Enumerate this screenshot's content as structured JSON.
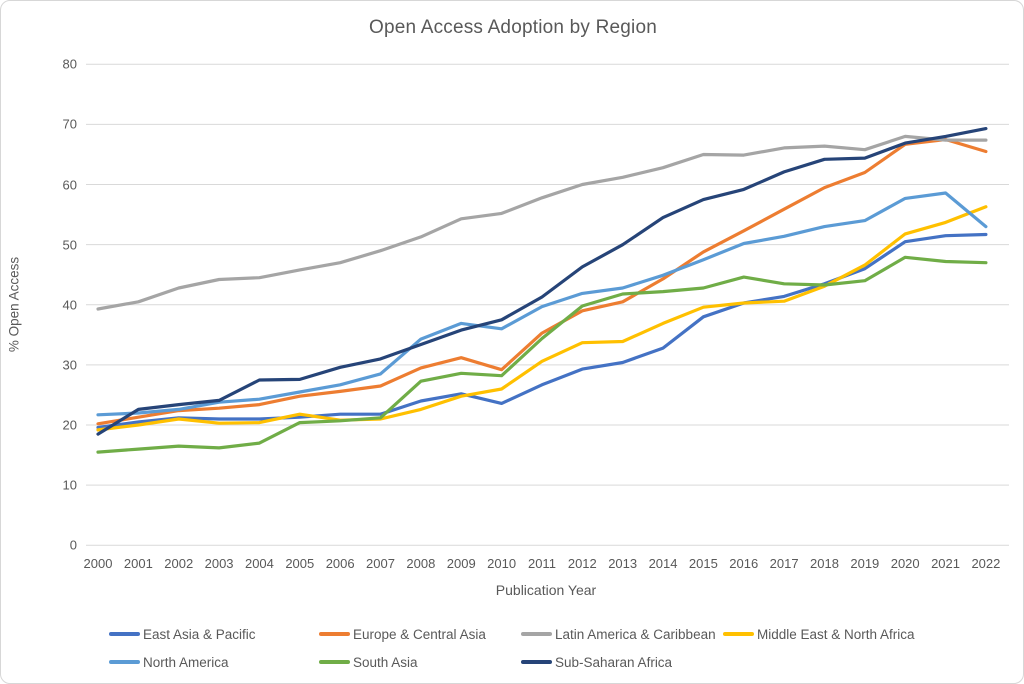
{
  "title": "Open Access Adoption by Region",
  "colors": {
    "background": "#FFFFFF",
    "border": "#D7D7D7",
    "gridline": "#D9D9D9",
    "axis_text": "#595959",
    "title_text": "#595959"
  },
  "chart_data": {
    "type": "line",
    "title": "Open Access Adoption by Region",
    "xlabel": "Publication Year",
    "ylabel": "% Open Access",
    "x": [
      2000,
      2001,
      2002,
      2003,
      2004,
      2005,
      2006,
      2007,
      2008,
      2009,
      2010,
      2011,
      2012,
      2013,
      2014,
      2015,
      2016,
      2017,
      2018,
      2019,
      2020,
      2021,
      2022
    ],
    "ylim": [
      0,
      80
    ],
    "ytick_step": 10,
    "grid": true,
    "legend_position": "bottom",
    "series": [
      {
        "name": "East Asia & Pacific",
        "color": "#4472C4",
        "values": [
          19.6,
          20.5,
          21.2,
          21.0,
          21.0,
          21.3,
          21.8,
          21.8,
          24.0,
          25.2,
          23.6,
          26.7,
          29.3,
          30.4,
          32.8,
          38.0,
          40.3,
          41.4,
          43.5,
          46.0,
          50.5,
          51.5,
          51.7
        ]
      },
      {
        "name": "Europe & Central Asia",
        "color": "#ED7D31",
        "values": [
          20.2,
          21.3,
          22.4,
          22.8,
          23.4,
          24.8,
          25.6,
          26.5,
          29.5,
          31.2,
          29.2,
          35.3,
          39.0,
          40.5,
          44.3,
          48.8,
          52.3,
          55.9,
          59.5,
          62.0,
          66.7,
          67.5,
          65.5
        ]
      },
      {
        "name": "Latin America & Caribbean",
        "color": "#A5A5A5",
        "values": [
          39.3,
          40.5,
          42.8,
          44.2,
          44.5,
          45.8,
          47.0,
          49.0,
          51.3,
          54.3,
          55.2,
          57.8,
          60.0,
          61.2,
          62.8,
          65.0,
          64.9,
          66.1,
          66.4,
          65.8,
          68.0,
          67.4,
          67.4
        ]
      },
      {
        "name": "Middle East & North Africa",
        "color": "#FFC000",
        "values": [
          19.2,
          20.0,
          21.0,
          20.3,
          20.4,
          21.8,
          20.8,
          21.0,
          22.6,
          24.8,
          26.0,
          30.6,
          33.7,
          33.9,
          36.9,
          39.6,
          40.3,
          40.6,
          43.1,
          46.6,
          51.8,
          53.7,
          56.3
        ]
      },
      {
        "name": "North America",
        "color": "#5B9BD5",
        "values": [
          21.7,
          22.0,
          22.6,
          23.8,
          24.3,
          25.5,
          26.7,
          28.5,
          34.3,
          36.9,
          36.0,
          39.7,
          41.9,
          42.8,
          44.9,
          47.5,
          50.2,
          51.4,
          53.0,
          54.0,
          57.7,
          58.6,
          53.0
        ]
      },
      {
        "name": "South Asia",
        "color": "#70AD47",
        "values": [
          15.5,
          16.0,
          16.5,
          16.2,
          17.0,
          20.4,
          20.7,
          21.2,
          27.3,
          28.6,
          28.2,
          34.4,
          39.8,
          41.8,
          42.2,
          42.8,
          44.6,
          43.5,
          43.3,
          44.0,
          47.9,
          47.2,
          47.0
        ]
      },
      {
        "name": "Sub-Saharan Africa",
        "color": "#264478",
        "values": [
          18.5,
          22.6,
          23.4,
          24.1,
          27.5,
          27.6,
          29.6,
          31.0,
          33.4,
          35.8,
          37.5,
          41.3,
          46.3,
          50.0,
          54.5,
          57.5,
          59.2,
          62.1,
          64.2,
          64.4,
          66.9,
          68.0,
          69.3
        ]
      }
    ]
  },
  "legend": {
    "rows": [
      [
        "East Asia & Pacific",
        "Europe & Central Asia",
        "Latin America & Caribbean",
        "Middle East & North Africa"
      ],
      [
        "North America",
        "South Asia",
        "Sub-Saharan Africa"
      ]
    ]
  }
}
